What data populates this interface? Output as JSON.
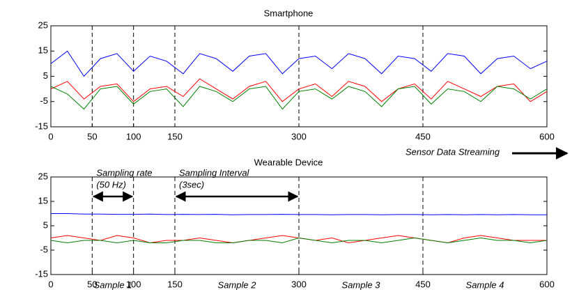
{
  "chart_data": [
    {
      "type": "line",
      "title": "Smartphone",
      "x": [
        0,
        20,
        40,
        60,
        80,
        100,
        120,
        140,
        160,
        180,
        200,
        220,
        240,
        260,
        280,
        300,
        320,
        340,
        360,
        380,
        400,
        420,
        440,
        460,
        480,
        500,
        520,
        540,
        560,
        580,
        600
      ],
      "series": [
        {
          "color": "#0000ff",
          "values": [
            10,
            15,
            5,
            12,
            14,
            7,
            13,
            11,
            6,
            14,
            12,
            7,
            13,
            14,
            6,
            12,
            13,
            8,
            14,
            12,
            6,
            13,
            12,
            7,
            14,
            13,
            6,
            12,
            13,
            8,
            11
          ]
        },
        {
          "color": "#ff0000",
          "values": [
            0,
            3,
            -4,
            1,
            2,
            -5,
            0,
            1,
            -3,
            4,
            0,
            -4,
            1,
            3,
            -5,
            0,
            2,
            -3,
            3,
            1,
            -5,
            0,
            2,
            -4,
            3,
            0,
            -3,
            1,
            2,
            -5,
            -1
          ]
        },
        {
          "color": "#008000",
          "values": [
            1,
            -2,
            -8,
            0,
            1,
            -6,
            -1,
            0,
            -7,
            1,
            -1,
            -5,
            0,
            1,
            -8,
            -1,
            0,
            -4,
            1,
            -1,
            -7,
            0,
            1,
            -6,
            0,
            -1,
            -5,
            1,
            0,
            -4,
            0
          ]
        }
      ],
      "xlim": [
        0,
        600
      ],
      "xticks": [
        0,
        50,
        100,
        150,
        300,
        450,
        600
      ],
      "ylim": [
        -15,
        25
      ],
      "yticks": [
        -15,
        -5,
        5,
        15,
        25
      ],
      "vlines": [
        50,
        100,
        150,
        300,
        450,
        600
      ],
      "annotation": "Sensor Data Streaming"
    },
    {
      "type": "line",
      "title": "Wearable Device",
      "x": [
        0,
        20,
        40,
        60,
        80,
        100,
        120,
        140,
        160,
        180,
        200,
        220,
        240,
        260,
        280,
        300,
        320,
        340,
        360,
        380,
        400,
        420,
        440,
        460,
        480,
        500,
        520,
        540,
        560,
        580,
        600
      ],
      "series": [
        {
          "color": "#0000ff",
          "values": [
            10,
            10,
            9.8,
            9.8,
            9.7,
            9.7,
            9.8,
            9.6,
            9.7,
            9.6,
            9.7,
            9.5,
            9.6,
            9.6,
            9.7,
            9.6,
            9.6,
            9.5,
            9.6,
            9.6,
            9.5,
            9.6,
            9.6,
            9.5,
            9.6,
            9.5,
            9.6,
            9.5,
            9.6,
            9.5,
            9.5
          ]
        },
        {
          "color": "#ff0000",
          "values": [
            0,
            1,
            0,
            -1,
            1,
            0,
            -2,
            -1,
            -1,
            0,
            -1,
            -2,
            -1,
            0,
            1,
            0,
            -1,
            0,
            -2,
            -1,
            0,
            1,
            0,
            -1,
            -2,
            0,
            1,
            0,
            -1,
            -1,
            -1
          ]
        },
        {
          "color": "#008000",
          "values": [
            -1,
            -2,
            -1,
            -1,
            -2,
            -1,
            -2,
            -2,
            -1,
            -1,
            -2,
            -2,
            -1,
            -1,
            -2,
            0,
            -1,
            -2,
            -1,
            -1,
            -2,
            -1,
            0,
            -1,
            -2,
            -1,
            0,
            -1,
            -1,
            -2,
            -1
          ]
        }
      ],
      "xlim": [
        0,
        600
      ],
      "xticks": [
        0,
        50,
        100,
        150,
        300,
        450,
        600
      ],
      "ylim": [
        -15,
        25
      ],
      "yticks": [
        -15,
        -5,
        5,
        15,
        25
      ],
      "vlines": [
        50,
        100,
        150,
        300,
        450,
        600
      ],
      "spans": [
        {
          "label": "Sampling rate",
          "sublabel": "(50 Hz)",
          "x": [
            50,
            100
          ],
          "y": 17
        },
        {
          "label": "Sampling Interval",
          "sublabel": "(3sec)",
          "x": [
            150,
            300
          ],
          "y": 17
        }
      ],
      "sample_labels": [
        "Sample 1",
        "Sample 2",
        "Sample 3",
        "Sample 4"
      ]
    }
  ]
}
